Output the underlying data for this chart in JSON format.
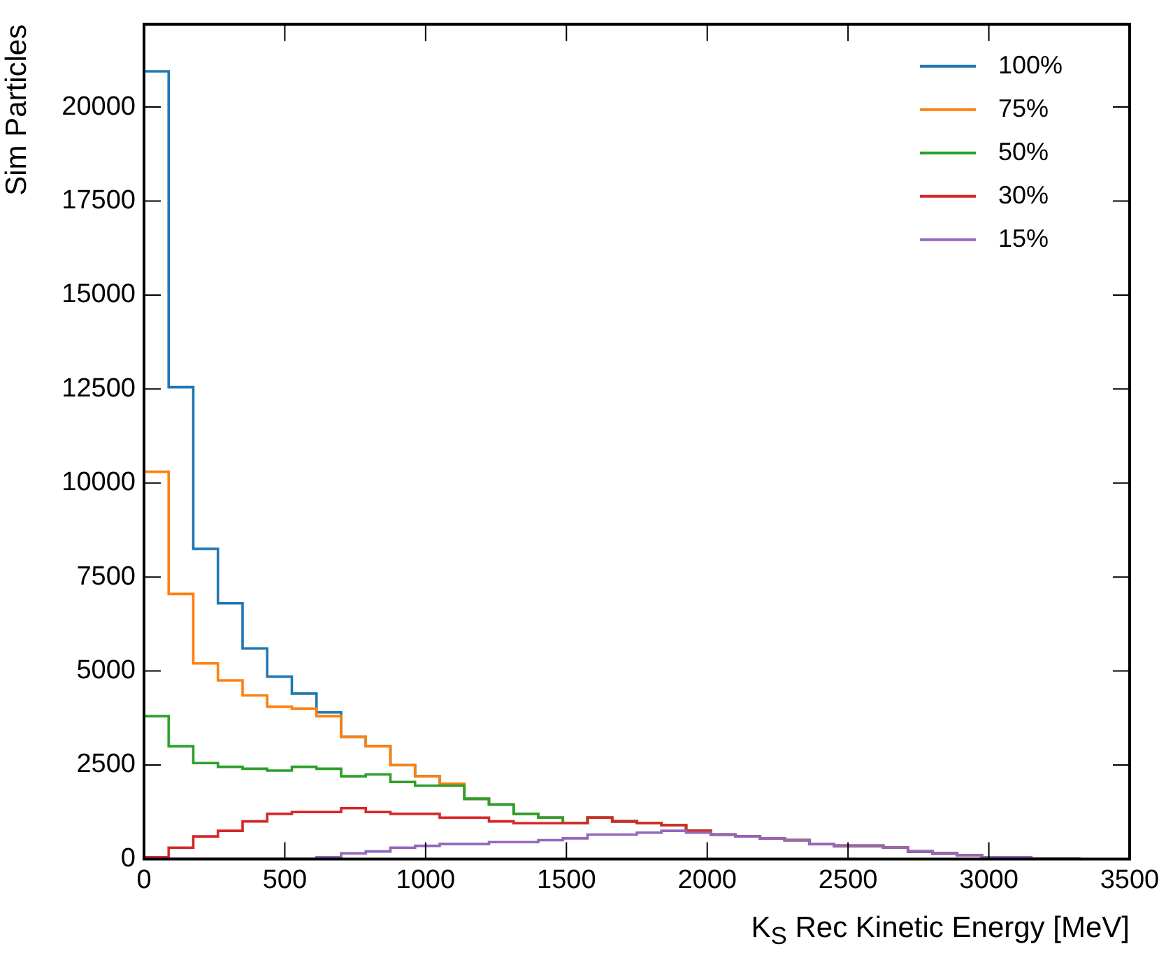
{
  "chart_data": {
    "type": "histogram",
    "xlabel": "K$_{S}$ Rec Kinetic Energy [MeV]",
    "ylabel": "Sim Particles",
    "bins": [
      0,
      87.5,
      175,
      262.5,
      350,
      437.5,
      525,
      612.5,
      700,
      787.5,
      875,
      962.5,
      1050,
      1137.5,
      1225,
      1312.5,
      1400,
      1487.5,
      1575,
      1662.5,
      1750,
      1837.5,
      1925,
      2012.5,
      2100,
      2187.5,
      2275,
      2362.5,
      2450,
      2537.5,
      2625,
      2712.5,
      2800,
      2887.5,
      2975,
      3062.5,
      3150,
      3237.5,
      3325
    ],
    "series": [
      {
        "name": "100%",
        "color": "#1f77b4",
        "values": [
          20950,
          12550,
          8250,
          6800,
          5600,
          4850,
          4400,
          3900,
          3250,
          3000,
          2500,
          2200,
          2000,
          1600,
          1450,
          1200,
          1100,
          950,
          1100,
          1000,
          950,
          900,
          750,
          650,
          600,
          550,
          500,
          400,
          350,
          350,
          300,
          200,
          150,
          100,
          50,
          50,
          0,
          0
        ]
      },
      {
        "name": "75%",
        "color": "#ff7f0e",
        "values": [
          10300,
          7050,
          5200,
          4750,
          4350,
          4050,
          4000,
          3800,
          3250,
          3000,
          2500,
          2200,
          2000,
          1600,
          1450,
          1200,
          1100,
          950,
          1100,
          1000,
          950,
          900,
          750,
          650,
          600,
          550,
          500,
          400,
          350,
          350,
          300,
          200,
          150,
          100,
          50,
          50,
          0,
          0
        ]
      },
      {
        "name": "50%",
        "color": "#2ca02c",
        "values": [
          3800,
          3000,
          2550,
          2450,
          2400,
          2350,
          2450,
          2400,
          2200,
          2250,
          2050,
          1950,
          1950,
          1600,
          1450,
          1200,
          1100,
          950,
          1100,
          1000,
          950,
          900,
          750,
          650,
          600,
          550,
          500,
          400,
          350,
          350,
          300,
          200,
          150,
          100,
          50,
          50,
          0,
          0
        ]
      },
      {
        "name": "30%",
        "color": "#d62728",
        "values": [
          50,
          300,
          600,
          750,
          1000,
          1200,
          1250,
          1250,
          1350,
          1250,
          1200,
          1200,
          1100,
          1100,
          1000,
          950,
          950,
          950,
          1100,
          1000,
          950,
          900,
          750,
          650,
          600,
          550,
          500,
          400,
          350,
          350,
          300,
          200,
          150,
          100,
          50,
          50,
          0,
          0
        ]
      },
      {
        "name": "15%",
        "color": "#9467bd",
        "values": [
          0,
          0,
          0,
          0,
          0,
          0,
          0,
          50,
          150,
          200,
          300,
          350,
          400,
          400,
          450,
          450,
          500,
          550,
          650,
          650,
          700,
          750,
          700,
          650,
          600,
          550,
          500,
          400,
          350,
          350,
          300,
          200,
          150,
          100,
          50,
          50,
          0,
          0
        ]
      }
    ],
    "xlim": [
      0,
      3500
    ],
    "xticks": [
      0,
      500,
      1000,
      1500,
      2000,
      2500,
      3000,
      3500
    ],
    "ylim": [
      0,
      22200
    ],
    "yticks": [
      0,
      2500,
      5000,
      7500,
      10000,
      12500,
      15000,
      17500,
      20000
    ],
    "grid": false,
    "legend": "top right"
  }
}
